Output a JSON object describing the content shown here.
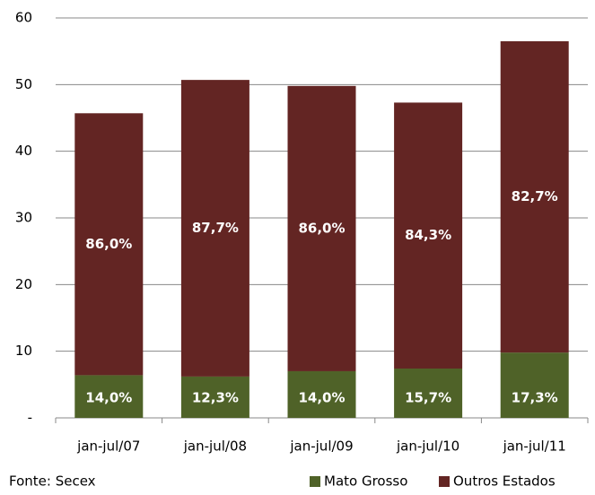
{
  "chart_data": {
    "type": "stacked_bar",
    "categories": [
      "jan-jul/07",
      "jan-jul/08",
      "jan-jul/09",
      "jan-jul/10",
      "jan-jul/11"
    ],
    "series": [
      {
        "name": "Mato Grosso",
        "color": "#4f6228",
        "values": [
          6.4,
          6.2,
          7.0,
          7.4,
          9.8
        ],
        "share_values": [
          14.0,
          12.3,
          14.0,
          15.7,
          17.3
        ],
        "share_labels": [
          "14,0%",
          "12,3%",
          "14,0%",
          "15,7%",
          "17,3%"
        ]
      },
      {
        "name": "Outros Estados",
        "color": "#632523",
        "values": [
          39.3,
          44.5,
          42.8,
          39.9,
          46.7
        ],
        "share_values": [
          86.0,
          87.7,
          86.0,
          84.3,
          82.7
        ],
        "share_labels": [
          "86,0%",
          "87,7%",
          "86,0%",
          "84,3%",
          "82,7%"
        ]
      }
    ],
    "ylim": [
      0,
      60
    ],
    "yticks": [
      {
        "value": 0,
        "label": "-"
      },
      10,
      20,
      30,
      40,
      50,
      60
    ],
    "grid": true,
    "source": "Fonte: Secex",
    "legend": "bottom-right"
  }
}
